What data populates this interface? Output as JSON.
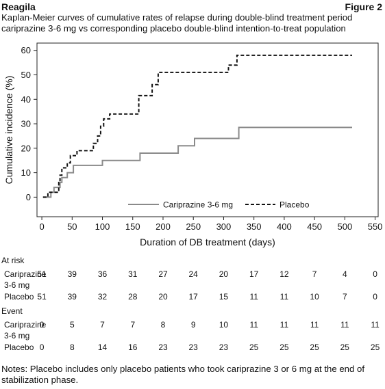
{
  "header": {
    "brand": "Reagila",
    "figure": "Figure 2",
    "title": "Kaplan-Meier curves of cumulative rates of relapse during double-blind treatment period cariprazine 3-6 mg vs corresponding placebo double-blind intention-to-treat population"
  },
  "chart_data": {
    "type": "line",
    "subtype": "kaplan-meier step",
    "xlabel": "Duration of DB treatment (days)",
    "ylabel": "Cumulative incidence (%)",
    "xlim": [
      -8,
      555
    ],
    "ylim": [
      -8,
      63
    ],
    "x_ticks": [
      0,
      50,
      100,
      150,
      200,
      250,
      300,
      350,
      400,
      450,
      500,
      550
    ],
    "y_ticks": [
      0,
      10,
      20,
      30,
      40,
      50,
      60
    ],
    "grid": false,
    "legend_position": "bottom-right inside",
    "series": [
      {
        "name": "Cariprazine 3-6 mg",
        "style": "solid",
        "color": "#8a8a8a",
        "points": [
          [
            2,
            0
          ],
          [
            15,
            0
          ],
          [
            15,
            2
          ],
          [
            20,
            2
          ],
          [
            20,
            4
          ],
          [
            30,
            4
          ],
          [
            30,
            6
          ],
          [
            33,
            6
          ],
          [
            33,
            8
          ],
          [
            42,
            8
          ],
          [
            42,
            10
          ],
          [
            52,
            10
          ],
          [
            52,
            13
          ],
          [
            100,
            13
          ],
          [
            100,
            15
          ],
          [
            162,
            15
          ],
          [
            162,
            18
          ],
          [
            225,
            18
          ],
          [
            225,
            21
          ],
          [
            252,
            21
          ],
          [
            252,
            24
          ],
          [
            325,
            24
          ],
          [
            325,
            28.5
          ],
          [
            512,
            28.5
          ]
        ]
      },
      {
        "name": "Placebo",
        "style": "dashed",
        "color": "#111111",
        "points": [
          [
            2,
            0
          ],
          [
            10,
            0
          ],
          [
            10,
            2
          ],
          [
            28,
            2
          ],
          [
            28,
            6
          ],
          [
            30,
            6
          ],
          [
            30,
            9
          ],
          [
            33,
            9
          ],
          [
            33,
            12
          ],
          [
            42,
            12
          ],
          [
            42,
            14
          ],
          [
            47,
            14
          ],
          [
            47,
            17
          ],
          [
            58,
            17
          ],
          [
            58,
            19
          ],
          [
            85,
            19
          ],
          [
            85,
            22
          ],
          [
            92,
            22
          ],
          [
            92,
            25
          ],
          [
            97,
            25
          ],
          [
            97,
            29
          ],
          [
            102,
            29
          ],
          [
            102,
            32
          ],
          [
            112,
            32
          ],
          [
            112,
            34
          ],
          [
            160,
            34
          ],
          [
            160,
            41.5
          ],
          [
            182,
            41.5
          ],
          [
            182,
            46
          ],
          [
            192,
            46
          ],
          [
            192,
            51
          ],
          [
            308,
            51
          ],
          [
            308,
            54
          ],
          [
            322,
            54
          ],
          [
            322,
            58
          ],
          [
            512,
            58
          ]
        ]
      }
    ]
  },
  "table": {
    "x_positions": [
      0,
      50,
      100,
      150,
      200,
      250,
      300,
      350,
      400,
      450,
      500,
      550
    ],
    "at_risk_label": "At risk",
    "event_label": "Event",
    "rows": [
      {
        "group": "at_risk",
        "label_line1": "Cariprazine",
        "label_line2": "3-6 mg",
        "values": [
          "51",
          "39",
          "36",
          "31",
          "27",
          "24",
          "20",
          "17",
          "12",
          "7",
          "4",
          "0"
        ]
      },
      {
        "group": "at_risk",
        "label_line1": "Placebo",
        "label_line2": "",
        "values": [
          "51",
          "39",
          "32",
          "28",
          "20",
          "17",
          "15",
          "11",
          "11",
          "10",
          "7",
          "0"
        ]
      },
      {
        "group": "event",
        "label_line1": "Cariprazine",
        "label_line2": "3-6 mg",
        "values": [
          "0",
          "5",
          "7",
          "7",
          "8",
          "9",
          "10",
          "11",
          "11",
          "11",
          "11",
          "11"
        ]
      },
      {
        "group": "event",
        "label_line1": "Placebo",
        "label_line2": "",
        "values": [
          "0",
          "8",
          "14",
          "16",
          "23",
          "23",
          "23",
          "25",
          "25",
          "25",
          "25",
          "25"
        ]
      }
    ]
  },
  "notes": "Notes: Placebo includes only placebo patients who took cariprazine 3 or 6 mg at the end of stabilization phase."
}
